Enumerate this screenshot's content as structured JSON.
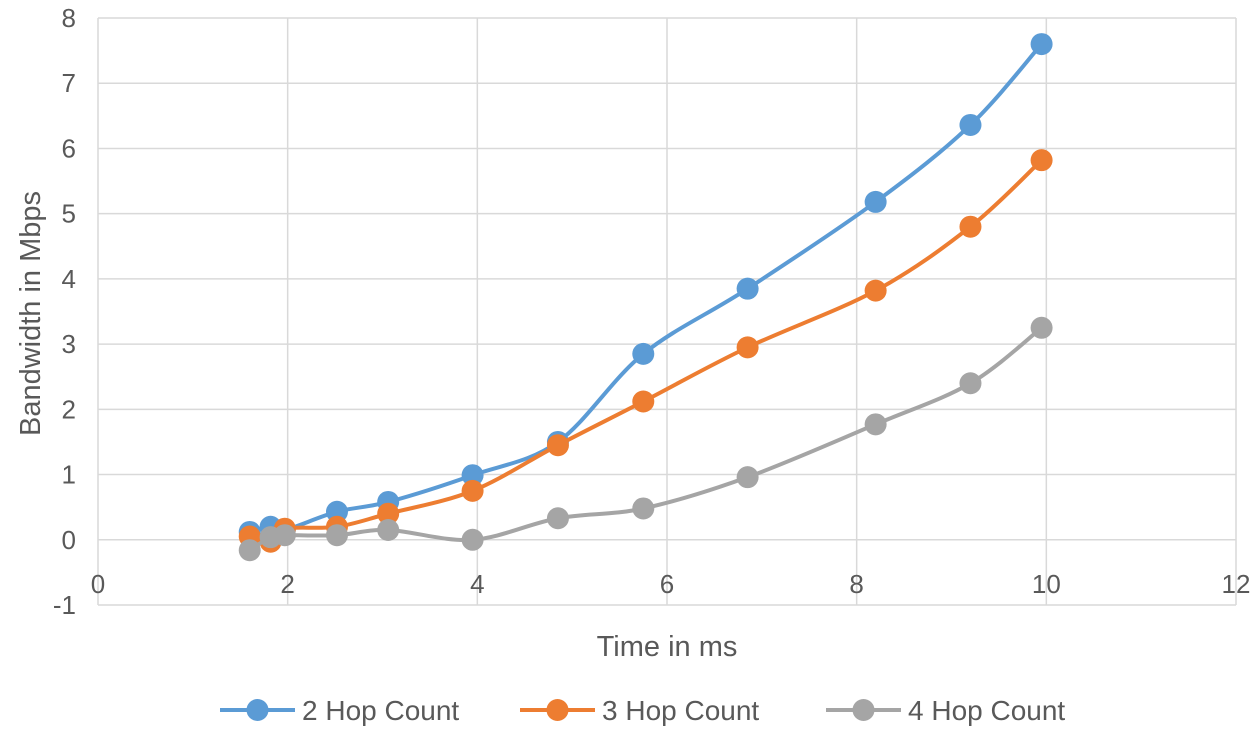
{
  "chart_data": {
    "type": "line",
    "title": "",
    "xlabel": "Time in ms",
    "ylabel": "Bandwidth in Mbps",
    "xlim": [
      0,
      12
    ],
    "ylim": [
      -1,
      8
    ],
    "x_ticks": [
      0,
      2,
      4,
      6,
      8,
      10,
      12
    ],
    "y_ticks": [
      -1,
      0,
      1,
      2,
      3,
      4,
      5,
      6,
      7,
      8
    ],
    "grid": true,
    "legend_position": "bottom",
    "smooth": true,
    "series": [
      {
        "name": "2 Hop Count",
        "color": "#5b9bd5",
        "points": [
          [
            1.6,
            0.12
          ],
          [
            1.82,
            0.2
          ],
          [
            1.97,
            0.15
          ],
          [
            2.52,
            0.43
          ],
          [
            3.06,
            0.58
          ],
          [
            3.95,
            0.99
          ],
          [
            4.85,
            1.5
          ],
          [
            5.75,
            2.85
          ],
          [
            6.85,
            3.85
          ],
          [
            8.2,
            5.18
          ],
          [
            9.2,
            6.36
          ],
          [
            9.95,
            7.6
          ]
        ]
      },
      {
        "name": "3 Hop Count",
        "color": "#ed7d31",
        "points": [
          [
            1.6,
            0.05
          ],
          [
            1.82,
            -0.03
          ],
          [
            1.97,
            0.17
          ],
          [
            2.52,
            0.2
          ],
          [
            3.06,
            0.4
          ],
          [
            3.95,
            0.75
          ],
          [
            4.85,
            1.45
          ],
          [
            5.75,
            2.12
          ],
          [
            6.85,
            2.95
          ],
          [
            8.2,
            3.82
          ],
          [
            9.2,
            4.8
          ],
          [
            9.95,
            5.82
          ]
        ]
      },
      {
        "name": "4 Hop Count",
        "color": "#a5a5a5",
        "points": [
          [
            1.6,
            -0.16
          ],
          [
            1.82,
            0.04
          ],
          [
            1.97,
            0.07
          ],
          [
            2.52,
            0.07
          ],
          [
            3.06,
            0.15
          ],
          [
            3.95,
            0.0
          ],
          [
            4.85,
            0.33
          ],
          [
            5.75,
            0.48
          ],
          [
            6.85,
            0.96
          ],
          [
            8.2,
            1.77
          ],
          [
            9.2,
            2.4
          ],
          [
            9.95,
            3.25
          ]
        ]
      }
    ]
  }
}
